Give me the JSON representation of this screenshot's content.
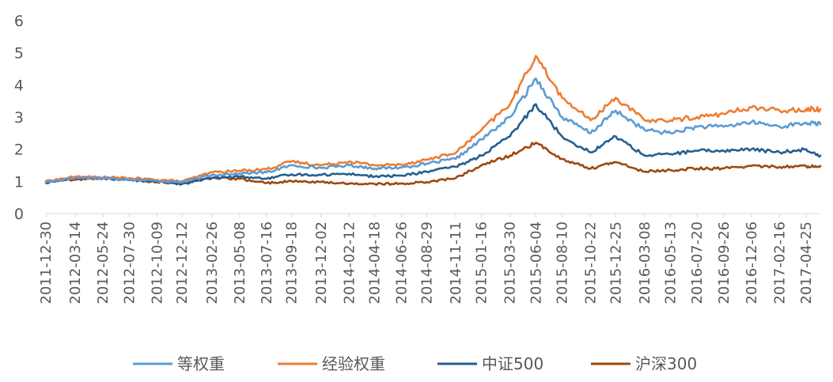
{
  "chart_data": {
    "type": "line",
    "title": "",
    "xlabel": "",
    "ylabel": "",
    "ylim": [
      0,
      6
    ],
    "yticks": [
      0,
      1,
      2,
      3,
      4,
      5,
      6
    ],
    "grid": false,
    "legend_position": "bottom",
    "x_tick_labels": [
      "2011-12-30",
      "2012-03-14",
      "2012-05-24",
      "2012-07-30",
      "2012-10-09",
      "2012-12-12",
      "2013-02-26",
      "2013-05-08",
      "2013-07-16",
      "2013-09-18",
      "2013-12-02",
      "2014-02-12",
      "2014-04-18",
      "2014-06-26",
      "2014-08-29",
      "2014-11-11",
      "2015-01-16",
      "2015-03-30",
      "2015-06-04",
      "2015-08-10",
      "2015-10-22",
      "2015-12-25",
      "2016-03-08",
      "2016-05-13",
      "2016-07-20",
      "2016-09-26",
      "2016-12-06",
      "2017-02-16",
      "2017-04-25"
    ],
    "x": [
      "2011-12-30",
      "2012-03-14",
      "2012-05-24",
      "2012-07-30",
      "2012-10-09",
      "2012-12-12",
      "2013-02-26",
      "2013-05-08",
      "2013-07-16",
      "2013-09-18",
      "2013-12-02",
      "2014-02-12",
      "2014-04-18",
      "2014-06-26",
      "2014-08-29",
      "2014-11-11",
      "2015-01-16",
      "2015-03-30",
      "2015-06-04",
      "2015-08-10",
      "2015-10-22",
      "2015-12-25",
      "2016-03-08",
      "2016-05-13",
      "2016-07-20",
      "2016-09-26",
      "2016-12-06",
      "2017-02-16",
      "2017-04-25",
      "2017-05-31"
    ],
    "series": [
      {
        "name": "等权重",
        "color": "#5B9BD5",
        "values": [
          0.97,
          1.12,
          1.1,
          1.06,
          1.02,
          0.97,
          1.2,
          1.25,
          1.28,
          1.5,
          1.42,
          1.5,
          1.4,
          1.43,
          1.55,
          1.7,
          2.3,
          3.0,
          4.2,
          3.0,
          2.5,
          3.2,
          2.6,
          2.5,
          2.7,
          2.7,
          2.85,
          2.7,
          2.82,
          2.78
        ]
      },
      {
        "name": "经验权重",
        "color": "#ED7D31",
        "values": [
          1.0,
          1.15,
          1.12,
          1.1,
          1.05,
          1.0,
          1.28,
          1.33,
          1.38,
          1.62,
          1.5,
          1.62,
          1.5,
          1.52,
          1.68,
          1.88,
          2.6,
          3.4,
          4.9,
          3.6,
          2.9,
          3.6,
          2.9,
          2.9,
          3.0,
          3.1,
          3.3,
          3.2,
          3.25,
          3.25
        ]
      },
      {
        "name": "中证500",
        "color": "#255E91",
        "values": [
          0.95,
          1.12,
          1.1,
          1.04,
          1.0,
          0.92,
          1.1,
          1.15,
          1.08,
          1.22,
          1.2,
          1.24,
          1.15,
          1.18,
          1.3,
          1.45,
          1.8,
          2.4,
          3.4,
          2.4,
          1.9,
          2.4,
          1.8,
          1.85,
          1.95,
          1.95,
          2.0,
          1.9,
          2.0,
          1.8
        ]
      },
      {
        "name": "沪深300",
        "color": "#9E480E",
        "values": [
          1.0,
          1.05,
          1.1,
          1.05,
          0.98,
          0.95,
          1.1,
          1.08,
          0.95,
          1.0,
          0.98,
          0.93,
          0.92,
          0.93,
          0.98,
          1.1,
          1.5,
          1.8,
          2.2,
          1.7,
          1.4,
          1.6,
          1.3,
          1.35,
          1.4,
          1.4,
          1.48,
          1.45,
          1.47,
          1.48
        ]
      }
    ]
  }
}
